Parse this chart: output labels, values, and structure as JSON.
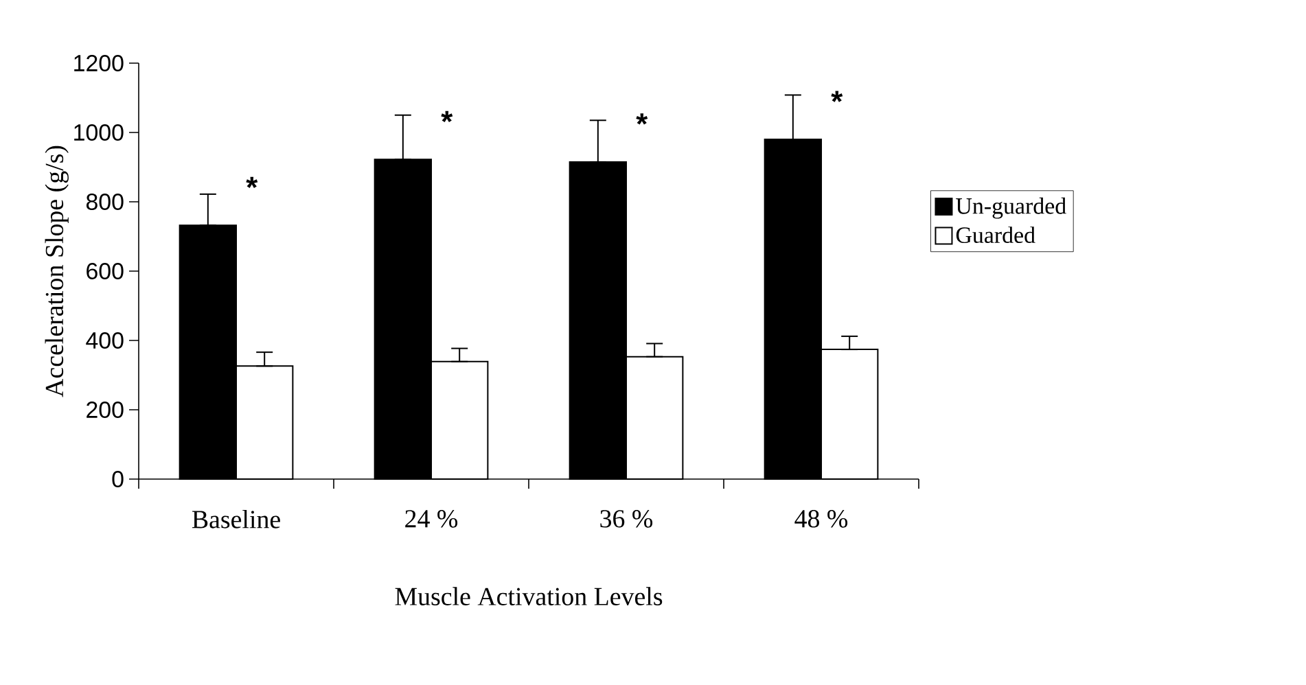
{
  "chart_data": {
    "type": "bar",
    "xlabel": "Muscle Activation Levels",
    "ylabel": "Acceleration Slope (g/s)",
    "categories": [
      "Baseline",
      "24 %",
      "36 %",
      "48 %"
    ],
    "series": [
      {
        "name": "Un-guarded",
        "color": "#000000",
        "values": [
          732,
          922,
          915,
          980
        ],
        "errors": [
          [
            732,
            822
          ],
          [
            922,
            1050
          ],
          [
            915,
            1035
          ],
          [
            980,
            1108
          ]
        ]
      },
      {
        "name": "Guarded",
        "color": "#ffffff",
        "values": [
          326,
          339,
          353,
          374
        ],
        "errors": [
          [
            326,
            366
          ],
          [
            339,
            377
          ],
          [
            353,
            391
          ],
          [
            374,
            412
          ]
        ]
      }
    ],
    "ylim": [
      0,
      1200
    ],
    "yticks": [
      0,
      200,
      400,
      600,
      800,
      1000,
      1200
    ],
    "legend": "right",
    "grid": false,
    "annotations": [
      "*",
      "*",
      "*",
      "*"
    ]
  }
}
